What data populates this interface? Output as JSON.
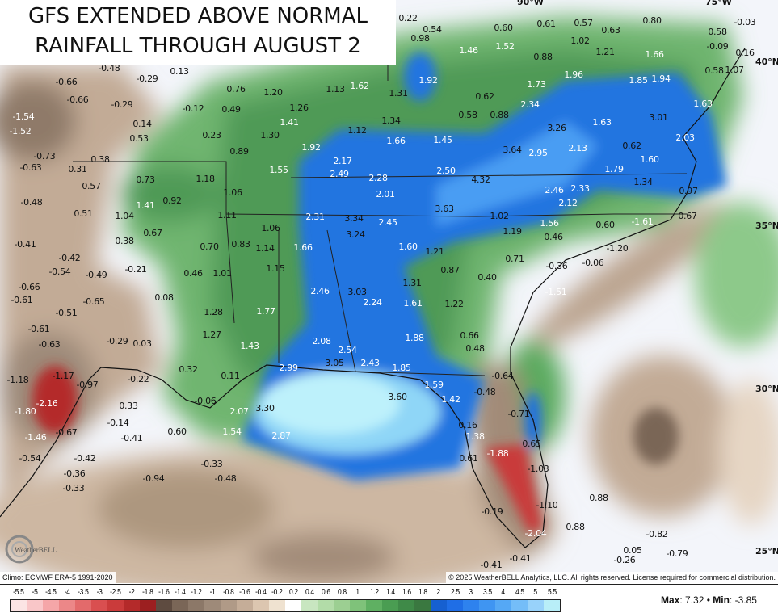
{
  "title": {
    "line1": "GFS EXTENDED ABOVE NORMAL",
    "line2": "RAINFALL THROUGH AUGUST 2"
  },
  "grid_labels": {
    "lon_90": "90°W",
    "lon_75": "75°W",
    "lat_40": "40°N",
    "lat_35": "35°N",
    "lat_30": "30°N",
    "lat_25": "25°N"
  },
  "footer": {
    "climo": "Climo: ECMWF ERA-5 1991-2020",
    "copyright": "© 2025 WeatherBELL Analytics, LLC. All rights reserved. License required for commercial distribution.",
    "logo": "WeatherBELL"
  },
  "stats": {
    "max_label": "Max",
    "max_value": ": 7.32",
    "sep": " • ",
    "min_label": "Min",
    "min_value": ": -3.85"
  },
  "legend": {
    "ticks": [
      "-5.5",
      "-5",
      "-4.5",
      "-4",
      "-3.5",
      "-3",
      "-2.5",
      "-2",
      "-1.8",
      "-1.6",
      "-1.4",
      "-1.2",
      "-1",
      "-0.8",
      "-0.6",
      "-0.4",
      "-0.2",
      "0.2",
      "0.4",
      "0.6",
      "0.8",
      "1",
      "1.2",
      "1.4",
      "1.6",
      "1.8",
      "2",
      "2.5",
      "3",
      "3.5",
      "4",
      "4.5",
      "5",
      "5.5"
    ],
    "colors": [
      "#fce4e4",
      "#f9c6c8",
      "#f5a6a8",
      "#ec8788",
      "#e36a6b",
      "#d94f50",
      "#ca3b3b",
      "#b42a2a",
      "#9c1f20",
      "#5e4b40",
      "#7a6657",
      "#8c7868",
      "#9e8a79",
      "#b09a87",
      "#c5ad98",
      "#dcc6b0",
      "#efe2d0",
      "#ffffff",
      "#c8e6c0",
      "#b2dca8",
      "#9ccf92",
      "#7fc27a",
      "#5fb062",
      "#4a9d52",
      "#3f8a48",
      "#3a7840",
      "#1660d0",
      "#1f6ee6",
      "#2e82ee",
      "#3f95f2",
      "#55a8f5",
      "#74bdf8",
      "#98d2fa",
      "#b8eef8"
    ]
  },
  "labels": [
    {
      "v": "-0.48"
    },
    {
      "v": "-0.66"
    },
    {
      "v": "-0.29"
    },
    {
      "v": "0.13"
    },
    {
      "v": "-0.66"
    },
    {
      "v": "-0.29"
    },
    {
      "v": "-1.54",
      "t": "light"
    },
    {
      "v": "-1.52",
      "t": "light"
    },
    {
      "v": "-0.12"
    },
    {
      "v": "0.49"
    },
    {
      "v": "0.76"
    },
    {
      "v": "1.20"
    },
    {
      "v": "0.14"
    },
    {
      "v": "0.53"
    },
    {
      "v": "0.23"
    },
    {
      "v": "1.26"
    },
    {
      "v": "1.41",
      "t": "light"
    },
    {
      "v": "1.30"
    },
    {
      "v": "1.13"
    },
    {
      "v": "1.62",
      "t": "light"
    },
    {
      "v": "1.12"
    },
    {
      "v": "1.34"
    },
    {
      "v": "1.66",
      "t": "light"
    },
    {
      "v": "-0.73"
    },
    {
      "v": "-0.63"
    },
    {
      "v": "0.31"
    },
    {
      "v": "0.38"
    },
    {
      "v": "0.89"
    },
    {
      "v": "1.92",
      "t": "light"
    },
    {
      "v": "2.17",
      "t": "light"
    },
    {
      "v": "2.49",
      "t": "light"
    },
    {
      "v": "1.55",
      "t": "light"
    },
    {
      "v": "2.28",
      "t": "light"
    },
    {
      "v": "2.01",
      "t": "light"
    },
    {
      "v": "0.57"
    },
    {
      "v": "0.73"
    },
    {
      "v": "1.18"
    },
    {
      "v": "1.06"
    },
    {
      "v": "-0.48"
    },
    {
      "v": "1.41",
      "t": "light"
    },
    {
      "v": "0.92"
    },
    {
      "v": "0.51"
    },
    {
      "v": "1.04"
    },
    {
      "v": "1.11"
    },
    {
      "v": "2.31",
      "t": "light"
    },
    {
      "v": "3.34"
    },
    {
      "v": "2.45",
      "t": "light"
    },
    {
      "v": "0.67"
    },
    {
      "v": "1.06"
    },
    {
      "v": "3.24"
    },
    {
      "v": "1.66",
      "t": "light"
    },
    {
      "v": "0.38"
    },
    {
      "v": "-0.41"
    },
    {
      "v": "0.70"
    },
    {
      "v": "0.83"
    },
    {
      "v": "1.14"
    },
    {
      "v": "-0.42"
    },
    {
      "v": "-0.54"
    },
    {
      "v": "-0.49"
    },
    {
      "v": "-0.21"
    },
    {
      "v": "0.46"
    },
    {
      "v": "1.01"
    },
    {
      "v": "1.15"
    },
    {
      "v": "0.22"
    },
    {
      "v": "0.54"
    },
    {
      "v": "0.98"
    },
    {
      "v": "0.60"
    },
    {
      "v": "1.46",
      "t": "light"
    },
    {
      "v": "1.52",
      "t": "light"
    },
    {
      "v": "0.61"
    },
    {
      "v": "0.57"
    },
    {
      "v": "0.63"
    },
    {
      "v": "0.80"
    },
    {
      "v": "1.02"
    },
    {
      "v": "1.21"
    },
    {
      "v": "0.88"
    },
    {
      "v": "1.66",
      "t": "light"
    },
    {
      "v": "1.92",
      "t": "light"
    },
    {
      "v": "1.31"
    },
    {
      "v": "0.62"
    },
    {
      "v": "1.96",
      "t": "light"
    },
    {
      "v": "1.73",
      "t": "light"
    },
    {
      "v": "1.85",
      "t": "light"
    },
    {
      "v": "1.94",
      "t": "light"
    },
    {
      "v": "0.58"
    },
    {
      "v": "1.07"
    },
    {
      "v": "1.63",
      "t": "light"
    },
    {
      "v": "0.58"
    },
    {
      "v": "0.88"
    },
    {
      "v": "2.34",
      "t": "light"
    },
    {
      "v": "3.26"
    },
    {
      "v": "1.63",
      "t": "light"
    },
    {
      "v": "3.01"
    },
    {
      "v": "2.03",
      "t": "light"
    },
    {
      "v": "1.45",
      "t": "light"
    },
    {
      "v": "3.64"
    },
    {
      "v": "2.95",
      "t": "light"
    },
    {
      "v": "2.13",
      "t": "light"
    },
    {
      "v": "0.62"
    },
    {
      "v": "1.60",
      "t": "light"
    },
    {
      "v": "2.50",
      "t": "light"
    },
    {
      "v": "1.79",
      "t": "light"
    },
    {
      "v": "4.32"
    },
    {
      "v": "1.34"
    },
    {
      "v": "2.46",
      "t": "light"
    },
    {
      "v": "2.33",
      "t": "light"
    },
    {
      "v": "2.12",
      "t": "light"
    },
    {
      "v": "-0.03"
    },
    {
      "v": "0.58"
    },
    {
      "v": "-0.09"
    },
    {
      "v": "0.16"
    },
    {
      "v": "0.97"
    },
    {
      "v": "3.63"
    },
    {
      "v": "1.02"
    },
    {
      "v": "1.56",
      "t": "light"
    },
    {
      "v": "0.60"
    },
    {
      "v": "-1.61",
      "t": "light"
    },
    {
      "v": "0.67"
    },
    {
      "v": "1.19"
    },
    {
      "v": "0.46"
    },
    {
      "v": "1.60",
      "t": "light"
    },
    {
      "v": "1.21"
    },
    {
      "v": "-1.20"
    },
    {
      "v": "0.71"
    },
    {
      "v": "0.87"
    },
    {
      "v": "-0.36"
    },
    {
      "v": "-0.06"
    },
    {
      "v": "0.40"
    },
    {
      "v": "-0.66"
    },
    {
      "v": "-0.61"
    },
    {
      "v": "-0.51"
    },
    {
      "v": "-0.65"
    },
    {
      "v": "0.08"
    },
    {
      "v": "2.46",
      "t": "light"
    },
    {
      "v": "3.03"
    },
    {
      "v": "2.24",
      "t": "light"
    },
    {
      "v": "1.31"
    },
    {
      "v": "1.28"
    },
    {
      "v": "1.77",
      "t": "light"
    },
    {
      "v": "-0.61"
    },
    {
      "v": "1.61",
      "t": "light"
    },
    {
      "v": "1.22"
    },
    {
      "v": "-0.63"
    },
    {
      "v": "-0.29"
    },
    {
      "v": "0.03"
    },
    {
      "v": "1.27"
    },
    {
      "v": "1.43",
      "t": "light"
    },
    {
      "v": "2.08",
      "t": "light"
    },
    {
      "v": "1.88",
      "t": "light"
    },
    {
      "v": "0.66"
    },
    {
      "v": "0.48"
    },
    {
      "v": "2.54",
      "t": "light"
    },
    {
      "v": "3.05"
    },
    {
      "v": "2.43",
      "t": "light"
    },
    {
      "v": "1.85",
      "t": "light"
    },
    {
      "v": "0.32"
    },
    {
      "v": "2.99",
      "t": "light"
    },
    {
      "v": "-1.18"
    },
    {
      "v": "-1.17"
    },
    {
      "v": "-0.97"
    },
    {
      "v": "-0.22"
    },
    {
      "v": "0.11"
    },
    {
      "v": "-0.64"
    },
    {
      "v": "1.59",
      "t": "light"
    },
    {
      "v": "-2.16",
      "t": "light"
    },
    {
      "v": "0.33"
    },
    {
      "v": "-0.48"
    },
    {
      "v": "-1.80",
      "t": "light"
    },
    {
      "v": "1.42",
      "t": "light"
    },
    {
      "v": "-0.06"
    },
    {
      "v": "2.07",
      "t": "light"
    },
    {
      "v": "3.30"
    },
    {
      "v": "-0.71"
    },
    {
      "v": "-0.14"
    },
    {
      "v": "0.16"
    },
    {
      "v": "0.60"
    },
    {
      "v": "1.54",
      "t": "light"
    },
    {
      "v": "-1.46",
      "t": "light"
    },
    {
      "v": "-0.67"
    },
    {
      "v": "-0.41"
    },
    {
      "v": "1.38",
      "t": "light"
    },
    {
      "v": "2.87",
      "t": "light"
    },
    {
      "v": "0.65"
    },
    {
      "v": "-0.54"
    },
    {
      "v": "-0.42"
    },
    {
      "v": "-0.36"
    },
    {
      "v": "-0.33"
    },
    {
      "v": "0.61"
    },
    {
      "v": "-1.88",
      "t": "light"
    },
    {
      "v": "-1.03"
    },
    {
      "v": "-0.33"
    },
    {
      "v": "-0.94"
    },
    {
      "v": "-0.48"
    },
    {
      "v": "0.88"
    },
    {
      "v": "-1.10"
    },
    {
      "v": "-0.19"
    },
    {
      "v": "0.88"
    },
    {
      "v": "-2.04",
      "t": "light"
    },
    {
      "v": "-0.82"
    },
    {
      "v": "0.05"
    },
    {
      "v": "-0.79"
    },
    {
      "v": "-0.26"
    },
    {
      "v": "-0.41"
    },
    {
      "v": "-0.41"
    },
    {
      "v": "-1.51",
      "t": "light"
    },
    {
      "v": "3.60"
    }
  ]
}
